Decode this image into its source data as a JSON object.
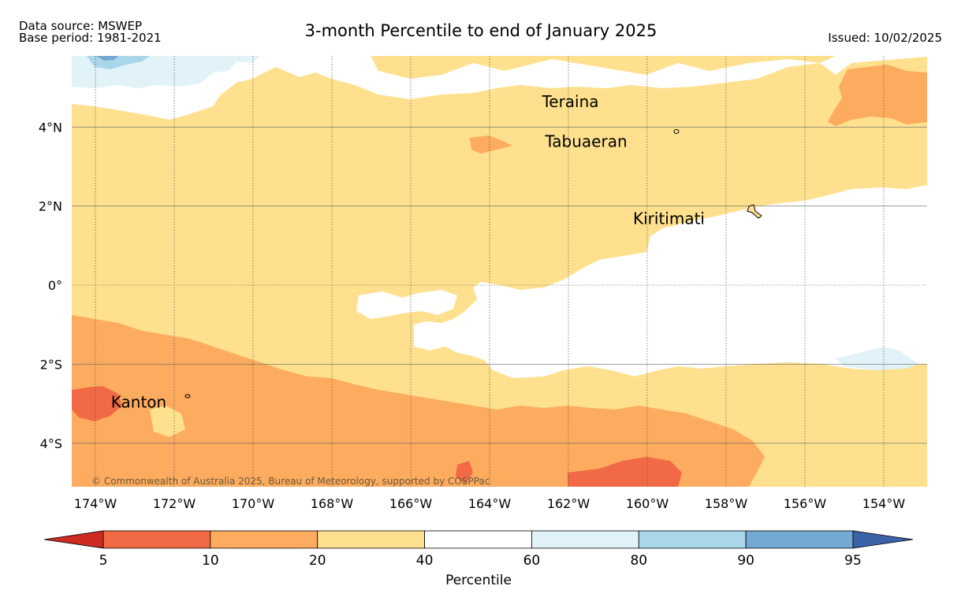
{
  "header": {
    "data_source": "Data source: MSWEP",
    "base_period": "Base period: 1981-2021",
    "title": "3-month Percentile to end of January 2025",
    "issued": "Issued: 10/02/2025"
  },
  "map": {
    "lon_range": [
      -174.6,
      -152.9
    ],
    "lat_range": [
      -5.1,
      5.8
    ],
    "lon_ticks": [
      {
        "value": -174,
        "label": "174°W"
      },
      {
        "value": -172,
        "label": "172°W"
      },
      {
        "value": -170,
        "label": "170°W"
      },
      {
        "value": -168,
        "label": "168°W"
      },
      {
        "value": -166,
        "label": "166°W"
      },
      {
        "value": -164,
        "label": "164°W"
      },
      {
        "value": -162,
        "label": "162°W"
      },
      {
        "value": -160,
        "label": "160°W"
      },
      {
        "value": -158,
        "label": "158°W"
      },
      {
        "value": -156,
        "label": "156°W"
      },
      {
        "value": -154,
        "label": "154°W"
      }
    ],
    "lat_ticks": [
      {
        "value": 4,
        "label": "4°N"
      },
      {
        "value": 2,
        "label": "2°N"
      },
      {
        "value": 0,
        "label": "0°"
      },
      {
        "value": -2,
        "label": "2°S"
      },
      {
        "value": -4,
        "label": "4°S"
      }
    ],
    "places": [
      {
        "name": "Teraina",
        "lon": -161.95,
        "lat": 4.5
      },
      {
        "name": "Tabuaeran",
        "lon": -161.55,
        "lat": 3.5
      },
      {
        "name": "Kiritimati",
        "lon": -159.45,
        "lat": 1.55
      },
      {
        "name": "Kanton",
        "lon": -172.9,
        "lat": -3.1
      }
    ],
    "copyright": "© Commonwealth of Australia 2025, Bureau of Meteorology, supported by COSPPac"
  },
  "legend": {
    "title": "Percentile",
    "bounds": [
      "5",
      "10",
      "20",
      "40",
      "60",
      "80",
      "90",
      "95"
    ],
    "colors": {
      "below5": "#cc2a22",
      "5-10": "#f26a45",
      "10-20": "#fdab5f",
      "20-40": "#fee08e",
      "40-60": "#ffffff",
      "60-80": "#e1f3f8",
      "80-90": "#a9d6e8",
      "90-95": "#73a9d2",
      "above95": "#3c62a8"
    }
  }
}
